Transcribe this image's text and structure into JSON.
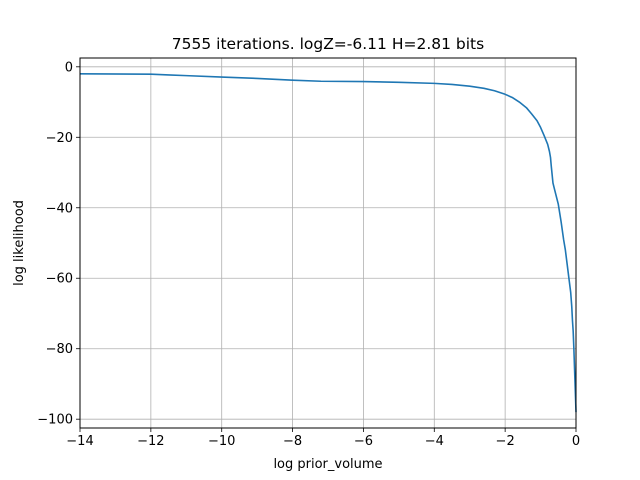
{
  "chart_data": {
    "type": "line",
    "title": "7555 iterations. logZ=-6.11 H=2.81 bits",
    "xlabel": "log prior_volume",
    "ylabel": "log likelihood",
    "xlim": [
      -14,
      0
    ],
    "ylim": [
      -102.5,
      2.5
    ],
    "xticks": [
      -14,
      -12,
      -10,
      -8,
      -6,
      -4,
      -2,
      0
    ],
    "yticks": [
      0,
      -20,
      -40,
      -60,
      -80,
      -100
    ],
    "xtick_labels": [
      "−14",
      "−12",
      "−10",
      "−8",
      "−6",
      "−4",
      "−2",
      "0"
    ],
    "ytick_labels": [
      "0",
      "−20",
      "−40",
      "−60",
      "−80",
      "−100"
    ],
    "grid": true,
    "legend": "none",
    "line_color": "#1f77b4",
    "series": [
      {
        "x": [
          -14.0,
          -12.0,
          -11.5,
          -11.0,
          -10.0,
          -9.0,
          -8.0,
          -7.2,
          -6.0,
          -5.0,
          -4.0,
          -3.5,
          -3.0,
          -2.6,
          -2.3,
          -2.0,
          -1.8,
          -1.6,
          -1.4,
          -1.25,
          -1.1,
          -1.0,
          -0.9,
          -0.8,
          -0.75,
          -0.72,
          -0.7,
          -0.65,
          -0.6,
          -0.5,
          -0.42,
          -0.35,
          -0.3,
          -0.25,
          -0.2,
          -0.15,
          -0.12,
          -0.1,
          -0.08,
          -0.06,
          -0.05,
          -0.04,
          -0.03,
          -0.02,
          -0.01,
          0.0
        ],
        "y": [
          -2.0,
          -2.1,
          -2.3,
          -2.5,
          -2.9,
          -3.3,
          -3.8,
          -4.1,
          -4.2,
          -4.4,
          -4.7,
          -5.0,
          -5.5,
          -6.1,
          -6.8,
          -7.8,
          -8.7,
          -10.0,
          -11.6,
          -13.4,
          -15.3,
          -17.2,
          -19.5,
          -22.0,
          -24.0,
          -25.7,
          -28.0,
          -33.0,
          -35.0,
          -39.0,
          -44.0,
          -49.0,
          -52.0,
          -56.0,
          -60.0,
          -64.0,
          -68.0,
          -72.0,
          -75.0,
          -80.0,
          -83.0,
          -86.0,
          -89.0,
          -92.0,
          -95.0,
          -98.0
        ]
      }
    ]
  }
}
